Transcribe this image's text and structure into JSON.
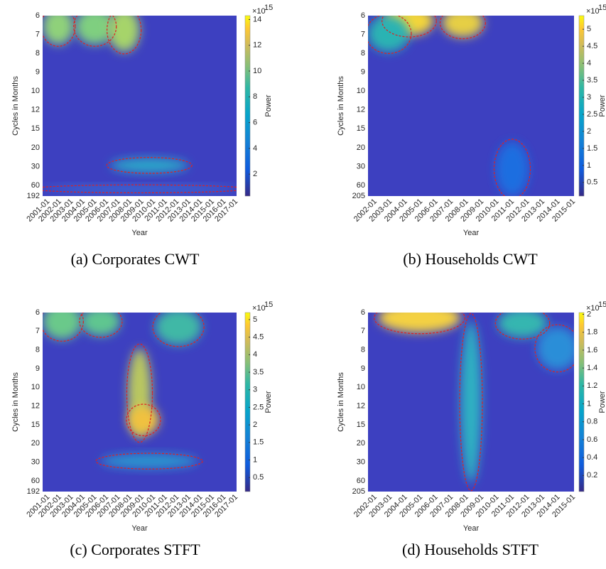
{
  "panels": [
    {
      "caption": "(a) Corporates CWT",
      "y_label": "Cycles in Months",
      "x_label": "Year",
      "y_ticks": [
        "6",
        "7",
        "8",
        "9",
        "10",
        "12",
        "15",
        "20",
        "30",
        "60",
        "192"
      ],
      "x_ticks": [
        "2001-01",
        "2002-01",
        "2003-01",
        "2004-01",
        "2005-01",
        "2006-01",
        "2007-01",
        "2008-01",
        "2009-01",
        "2010-01",
        "2011-01",
        "2012-01",
        "2013-01",
        "2014-01",
        "2015-01",
        "2016-01",
        "2017-01"
      ],
      "colorbar": {
        "label": "Power",
        "base": "×10",
        "exponent": "15",
        "clim": [
          0.3,
          14.3
        ],
        "ticks": [
          2,
          4,
          6,
          8,
          10,
          12,
          14
        ]
      }
    },
    {
      "caption": "(b) Households CWT",
      "y_label": "Cycles in Months",
      "x_label": "Year",
      "y_ticks": [
        "6",
        "7",
        "8",
        "9",
        "10",
        "12",
        "15",
        "20",
        "30",
        "60",
        "205"
      ],
      "x_ticks": [
        "2002-01",
        "2003-01",
        "2004-01",
        "2005-01",
        "2006-01",
        "2007-01",
        "2008-01",
        "2009-01",
        "2010-01",
        "2011-01",
        "2012-01",
        "2013-01",
        "2014-01",
        "2015-01"
      ],
      "colorbar": {
        "label": "Power",
        "base": "×10",
        "exponent": "15",
        "clim": [
          0.1,
          5.4
        ],
        "ticks": [
          0.5,
          1,
          1.5,
          2,
          2.5,
          3,
          3.5,
          4,
          4.5,
          5
        ]
      }
    },
    {
      "caption": "(c) Corporates STFT",
      "y_label": "Cycles in Months",
      "x_label": "Year",
      "y_ticks": [
        "6",
        "7",
        "8",
        "9",
        "10",
        "12",
        "15",
        "20",
        "30",
        "60",
        "192"
      ],
      "x_ticks": [
        "2001-01",
        "2002-01",
        "2003-01",
        "2004-01",
        "2005-01",
        "2006-01",
        "2007-01",
        "2008-01",
        "2009-01",
        "2010-01",
        "2011-01",
        "2012-01",
        "2013-01",
        "2014-01",
        "2015-01",
        "2016-01",
        "2017-01"
      ],
      "colorbar": {
        "label": "Power",
        "base": "×10",
        "exponent": "15",
        "clim": [
          0.1,
          5.2
        ],
        "ticks": [
          0.5,
          1,
          1.5,
          2,
          2.5,
          3,
          3.5,
          4,
          4.5,
          5
        ]
      }
    },
    {
      "caption": "(d) Households STFT",
      "y_label": "Cycles in Months",
      "x_label": "Year",
      "y_ticks": [
        "6",
        "7",
        "8",
        "9",
        "10",
        "12",
        "15",
        "20",
        "30",
        "60",
        "205"
      ],
      "x_ticks": [
        "2002-01",
        "2003-01",
        "2004-01",
        "2005-01",
        "2006-01",
        "2007-01",
        "2008-01",
        "2009-01",
        "2010-01",
        "2011-01",
        "2012-01",
        "2013-01",
        "2014-01",
        "2015-01"
      ],
      "colorbar": {
        "label": "Power",
        "base": "×10",
        "exponent": "15",
        "clim": [
          0.02,
          2.02
        ],
        "ticks": [
          0.2,
          0.4,
          0.6,
          0.8,
          1,
          1.2,
          1.4,
          1.6,
          1.8,
          2
        ]
      }
    }
  ]
}
